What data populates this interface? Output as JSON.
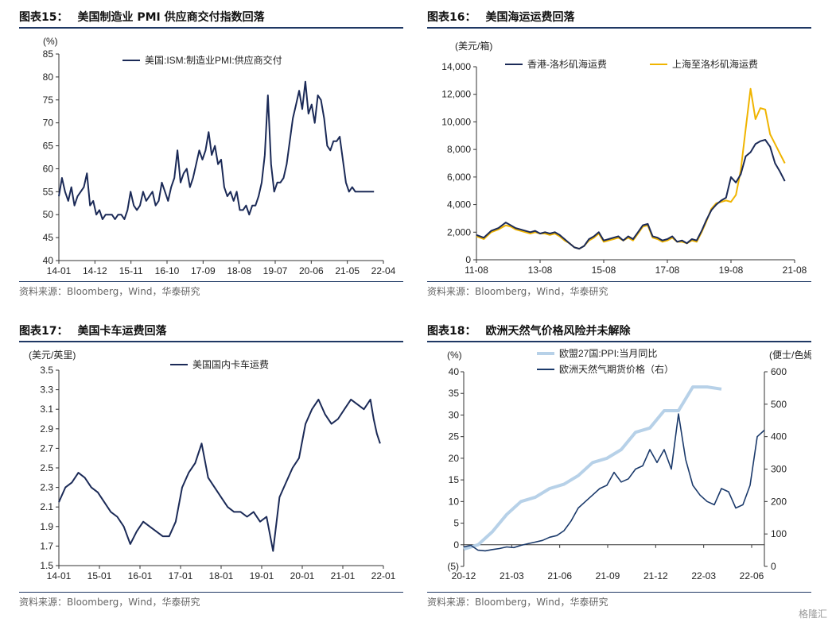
{
  "watermark": "格隆汇",
  "source_text": "资料来源：Bloomberg，Wind，华泰研究",
  "colors": {
    "navy": "#1f3864",
    "line": "#1b2a57",
    "gold": "#f0b400",
    "lightblue": "#b7d1e8",
    "rule": "#1f3864"
  },
  "panels": [
    {
      "label": "图表15：",
      "title": "美国制造业 PMI 供应商交付指数回落"
    },
    {
      "label": "图表16：",
      "title": "美国海运运费回落"
    },
    {
      "label": "图表17：",
      "title": "美国卡车运费回落"
    },
    {
      "label": "图表18：",
      "title": "欧洲天然气价格风险并未解除"
    }
  ],
  "chart_data": [
    {
      "type": "line",
      "unit": "(%)",
      "yticks": [
        "85",
        "80",
        "75",
        "70",
        "65",
        "60",
        "55",
        "50",
        "45",
        "40"
      ],
      "ylim": [
        40,
        85
      ],
      "xticks": [
        "14-01",
        "14-12",
        "15-11",
        "16-10",
        "17-09",
        "18-08",
        "19-07",
        "20-06",
        "21-05",
        "22-04"
      ],
      "xlim": [
        0,
        104
      ],
      "series": [
        {
          "name": "美国:ISM:制造业PMI:供应商交付",
          "color": "#1b2a57",
          "x": [
            0,
            1,
            2,
            3,
            4,
            5,
            6,
            7,
            8,
            9,
            10,
            11,
            12,
            13,
            14,
            15,
            16,
            17,
            18,
            19,
            20,
            21,
            22,
            23,
            24,
            25,
            26,
            27,
            28,
            29,
            30,
            31,
            32,
            33,
            34,
            35,
            36,
            37,
            38,
            39,
            40,
            41,
            42,
            43,
            44,
            45,
            46,
            47,
            48,
            49,
            50,
            51,
            52,
            53,
            54,
            55,
            56,
            57,
            58,
            59,
            60,
            61,
            62,
            63,
            64,
            65,
            66,
            67,
            68,
            69,
            70,
            71,
            72,
            73,
            74,
            75,
            76,
            77,
            78,
            79,
            80,
            81,
            82,
            83,
            84,
            85,
            86,
            87,
            88,
            89,
            90,
            91,
            92,
            93,
            94,
            95,
            96,
            97,
            98,
            99,
            100,
            101
          ],
          "values": [
            54,
            58,
            55,
            53,
            56,
            52,
            54,
            55,
            56,
            59,
            52,
            53,
            50,
            51,
            49,
            50,
            50,
            50,
            49,
            50,
            50,
            49,
            51,
            55,
            52,
            51,
            52,
            55,
            53,
            54,
            55,
            52,
            53,
            57,
            55,
            53,
            56,
            58,
            64,
            57,
            59,
            60,
            56,
            58,
            61,
            64,
            62,
            64,
            68,
            63,
            65,
            61,
            62,
            56,
            54,
            55,
            53,
            55,
            51,
            51,
            52,
            50,
            52,
            52,
            54,
            57,
            63,
            76,
            61,
            55,
            57,
            57,
            58,
            61,
            66,
            71,
            74,
            77,
            73,
            79,
            72,
            74,
            70,
            76,
            75,
            71,
            65,
            64,
            66,
            66,
            67,
            62,
            57,
            55,
            56,
            55,
            55,
            55,
            55,
            55,
            55,
            55
          ]
        }
      ],
      "title": "",
      "xlabel": "",
      "ylabel": "",
      "grid": false,
      "legend": "top-right"
    },
    {
      "type": "line",
      "unit": "(美元/箱)",
      "yticks": [
        "14,000",
        "12,000",
        "10,000",
        "8,000",
        "6,000",
        "4,000",
        "2,000",
        "0"
      ],
      "ylim": [
        0,
        14000
      ],
      "xticks": [
        "11-08",
        "13-08",
        "15-08",
        "17-08",
        "19-08",
        "21-08"
      ],
      "xlim": [
        0,
        130
      ],
      "series": [
        {
          "name": "香港-洛杉矶海运费",
          "color": "#1b2a57",
          "x": [
            0,
            3,
            6,
            9,
            12,
            14,
            16,
            18,
            20,
            22,
            24,
            26,
            28,
            30,
            32,
            34,
            36,
            38,
            40,
            42,
            44,
            46,
            48,
            50,
            52,
            54,
            56,
            58,
            60,
            62,
            64,
            66,
            68,
            70,
            72,
            74,
            76,
            78,
            80,
            82,
            84,
            86,
            88,
            90,
            92,
            94,
            96,
            98,
            100,
            102,
            104,
            106,
            108,
            110,
            112,
            114,
            116,
            118,
            120,
            122,
            124,
            126
          ],
          "values": [
            1800,
            1600,
            2100,
            2300,
            2700,
            2500,
            2300,
            2200,
            2100,
            2000,
            2100,
            1900,
            2000,
            1900,
            2000,
            1800,
            1500,
            1200,
            900,
            800,
            1000,
            1500,
            1700,
            2000,
            1400,
            1500,
            1600,
            1700,
            1400,
            1700,
            1500,
            2000,
            2500,
            2600,
            1700,
            1600,
            1400,
            1500,
            1700,
            1300,
            1400,
            1200,
            1500,
            1400,
            2100,
            2900,
            3600,
            4000,
            4300,
            4500,
            6000,
            5600,
            6200,
            7500,
            7800,
            8400,
            8600,
            8700,
            8200,
            7000,
            6400,
            5700
          ]
        },
        {
          "name": "上海至洛杉矶海运费",
          "color": "#f0b400",
          "x": [
            0,
            3,
            6,
            9,
            12,
            14,
            16,
            18,
            20,
            22,
            24,
            26,
            28,
            30,
            32,
            34,
            36,
            38,
            40,
            42,
            44,
            46,
            48,
            50,
            52,
            54,
            56,
            58,
            60,
            62,
            64,
            66,
            68,
            70,
            72,
            74,
            76,
            78,
            80,
            82,
            84,
            86,
            88,
            90,
            92,
            94,
            96,
            98,
            100,
            102,
            104,
            106,
            108,
            110,
            112,
            114,
            116,
            118,
            120,
            122,
            124,
            126
          ],
          "values": [
            1700,
            1500,
            2000,
            2200,
            2500,
            2400,
            2200,
            2100,
            2000,
            1900,
            2000,
            1900,
            1900,
            1800,
            1900,
            1700,
            1400,
            1200,
            900,
            800,
            1000,
            1400,
            1600,
            1900,
            1300,
            1400,
            1500,
            1600,
            1400,
            1600,
            1400,
            1900,
            2400,
            2500,
            1600,
            1500,
            1300,
            1400,
            1600,
            1300,
            1300,
            1200,
            1400,
            1300,
            2000,
            2800,
            3700,
            4100,
            4200,
            4300,
            4200,
            4700,
            6500,
            9500,
            12400,
            10200,
            11000,
            10900,
            9100,
            8400,
            7700,
            7000
          ]
        }
      ],
      "title": "",
      "xlabel": "",
      "ylabel": "",
      "grid": false,
      "legend": "top"
    },
    {
      "type": "line",
      "unit": "(美元/英里)",
      "yticks": [
        "3.5",
        "3.3",
        "3.1",
        "2.9",
        "2.7",
        "2.5",
        "2.3",
        "2.1",
        "1.9",
        "1.7",
        "1.5"
      ],
      "ylim": [
        1.5,
        3.5
      ],
      "xticks": [
        "14-01",
        "15-01",
        "16-01",
        "17-01",
        "18-01",
        "19-01",
        "20-01",
        "21-01",
        "22-01"
      ],
      "xlim": [
        0,
        100
      ],
      "series": [
        {
          "name": "美国国内卡车运费",
          "color": "#1b2a57",
          "x": [
            0,
            2,
            4,
            6,
            8,
            10,
            12,
            14,
            16,
            18,
            20,
            22,
            24,
            26,
            28,
            30,
            32,
            34,
            36,
            38,
            40,
            42,
            44,
            46,
            48,
            50,
            52,
            54,
            56,
            58,
            60,
            62,
            64,
            66,
            68,
            70,
            72,
            74,
            76,
            78,
            80,
            82,
            84,
            86,
            88,
            90,
            92,
            94,
            96,
            97,
            98,
            99
          ],
          "values": [
            2.15,
            2.3,
            2.35,
            2.45,
            2.4,
            2.3,
            2.25,
            2.15,
            2.05,
            2.0,
            1.9,
            1.72,
            1.85,
            1.95,
            1.9,
            1.85,
            1.8,
            1.8,
            1.95,
            2.3,
            2.45,
            2.55,
            2.75,
            2.4,
            2.3,
            2.2,
            2.1,
            2.05,
            2.05,
            2.0,
            2.05,
            1.95,
            2.0,
            1.65,
            2.2,
            2.35,
            2.5,
            2.6,
            2.95,
            3.1,
            3.2,
            3.05,
            2.95,
            3.0,
            3.1,
            3.2,
            3.15,
            3.1,
            3.2,
            3.0,
            2.85,
            2.75
          ]
        }
      ],
      "title": "",
      "xlabel": "",
      "ylabel": "",
      "grid": false,
      "legend": "top"
    },
    {
      "type": "line",
      "unit_left": "(%)",
      "unit_right": "(便士/色姆)",
      "yticks_left": [
        "40",
        "35",
        "30",
        "25",
        "20",
        "15",
        "10",
        "5",
        "0",
        "(5)"
      ],
      "ylim_left": [
        -5,
        40
      ],
      "yticks_right": [
        "600",
        "500",
        "400",
        "300",
        "200",
        "100",
        "0"
      ],
      "ylim_right": [
        0,
        600
      ],
      "xticks": [
        "20-12",
        "21-03",
        "21-06",
        "21-09",
        "21-12",
        "22-03",
        "22-06"
      ],
      "xlim": [
        0,
        21
      ],
      "series": [
        {
          "name": "欧盟27国:PPI:当月同比",
          "axis": "left",
          "color": "#b7d1e8",
          "x": [
            0,
            1,
            2,
            3,
            4,
            5,
            6,
            7,
            8,
            9,
            10,
            11,
            12,
            13,
            14,
            15,
            16,
            17,
            18
          ],
          "values": [
            -1,
            0,
            3,
            7,
            10,
            11,
            13,
            14,
            16,
            19,
            20,
            22,
            26,
            27,
            31,
            31,
            36.5,
            36.5,
            36
          ]
        },
        {
          "name": "欧洲天然气期货价格（右）",
          "axis": "right",
          "color": "#1b3a6b",
          "x": [
            0,
            0.5,
            1,
            1.5,
            2,
            2.5,
            3,
            3.5,
            4,
            4.5,
            5,
            5.5,
            6,
            6.5,
            7,
            7.5,
            8,
            8.5,
            9,
            9.5,
            10,
            10.5,
            11,
            11.5,
            12,
            12.5,
            13,
            13.5,
            14,
            14.5,
            15,
            15.5,
            16,
            16.5,
            17,
            17.5,
            18,
            18.5,
            19,
            19.5,
            20,
            20.5,
            21
          ],
          "values": [
            60,
            65,
            50,
            48,
            52,
            55,
            60,
            58,
            65,
            70,
            75,
            80,
            90,
            95,
            110,
            140,
            180,
            200,
            220,
            240,
            250,
            290,
            260,
            270,
            300,
            310,
            360,
            320,
            360,
            300,
            470,
            330,
            250,
            220,
            200,
            190,
            240,
            230,
            180,
            190,
            250,
            400,
            420
          ]
        }
      ],
      "title": "",
      "xlabel": "",
      "ylabel": "",
      "grid": false,
      "legend": "top"
    }
  ]
}
